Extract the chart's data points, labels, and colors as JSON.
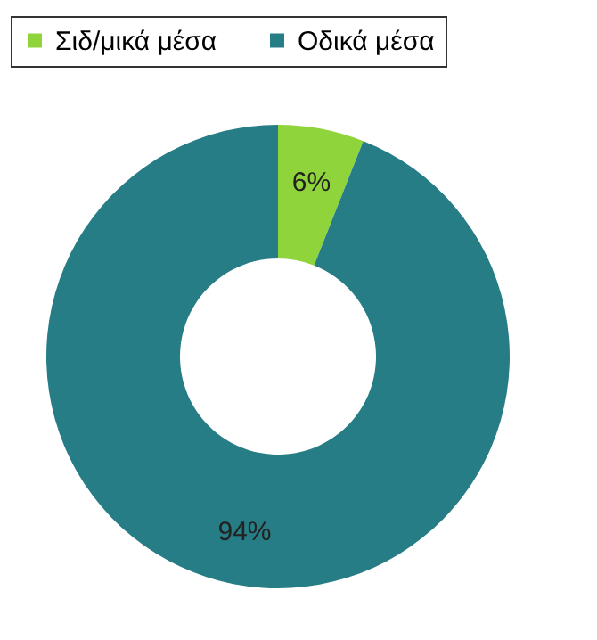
{
  "chart_data": {
    "type": "donut",
    "categories": [
      "Σιδ/μικά μέσα",
      "Οδικά μέσα"
    ],
    "values": [
      6,
      94
    ],
    "colors": [
      "#8fd43a",
      "#267d85"
    ],
    "value_labels": [
      "6%",
      "94%"
    ],
    "legend": "top"
  }
}
